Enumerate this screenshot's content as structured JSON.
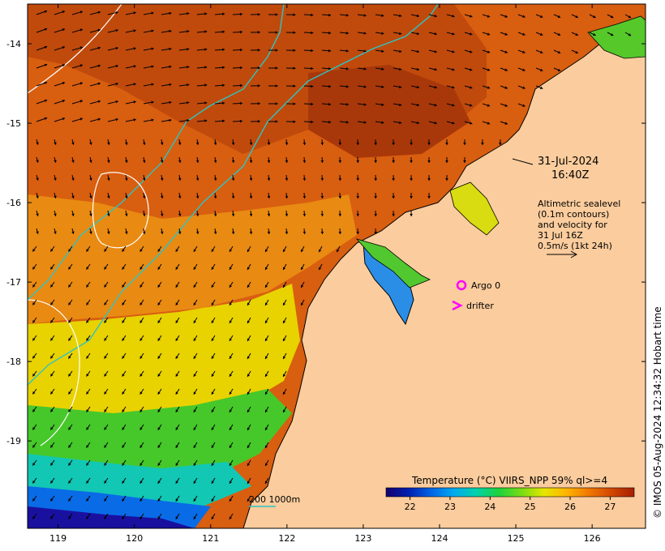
{
  "timestamp": {
    "date": "31-Jul-2024",
    "time": "16:40Z"
  },
  "altimetry_note": {
    "line1": "Altimetric sealevel",
    "line2": "(0.1m contours)",
    "line3": "and velocity for",
    "line4": "31 Jul 16Z",
    "line5": "0.5m/s (1kt 24h)"
  },
  "legend": {
    "argo": "Argo 0",
    "drifter": "drifter"
  },
  "depth_scale": {
    "label": "200  1000m"
  },
  "colorbar": {
    "title": "Temperature (°C) VIIRS_NPP 59% ql>=4",
    "ticks": [
      "22",
      "23",
      "24",
      "25",
      "26",
      "27"
    ],
    "range": [
      21.4,
      27.6
    ],
    "colors": [
      "#16006e",
      "#0020b0",
      "#0064e6",
      "#00aaf0",
      "#00d2aa",
      "#1ed23c",
      "#78dc14",
      "#e6e600",
      "#ffb400",
      "#f07800",
      "#d24600",
      "#a51e00"
    ]
  },
  "copyright": "© IMOS 05-Aug-2024 12:34:32 Hobart time",
  "axes": {
    "x_ticks": [
      "119",
      "120",
      "121",
      "122",
      "123",
      "124",
      "125",
      "126"
    ],
    "y_ticks": [
      "-14",
      "-15",
      "-16",
      "-17",
      "-18",
      "-19"
    ],
    "lon_range": [
      118.6,
      126.7
    ],
    "lat_range": [
      -20.1,
      -13.5
    ]
  },
  "colors": {
    "land": "#fbcc9d",
    "isobath": "#2ec4c4",
    "contour": "#ffffff",
    "argo": "#ff00ff",
    "drifter": "#ff00ff",
    "arrow": "#000000"
  }
}
